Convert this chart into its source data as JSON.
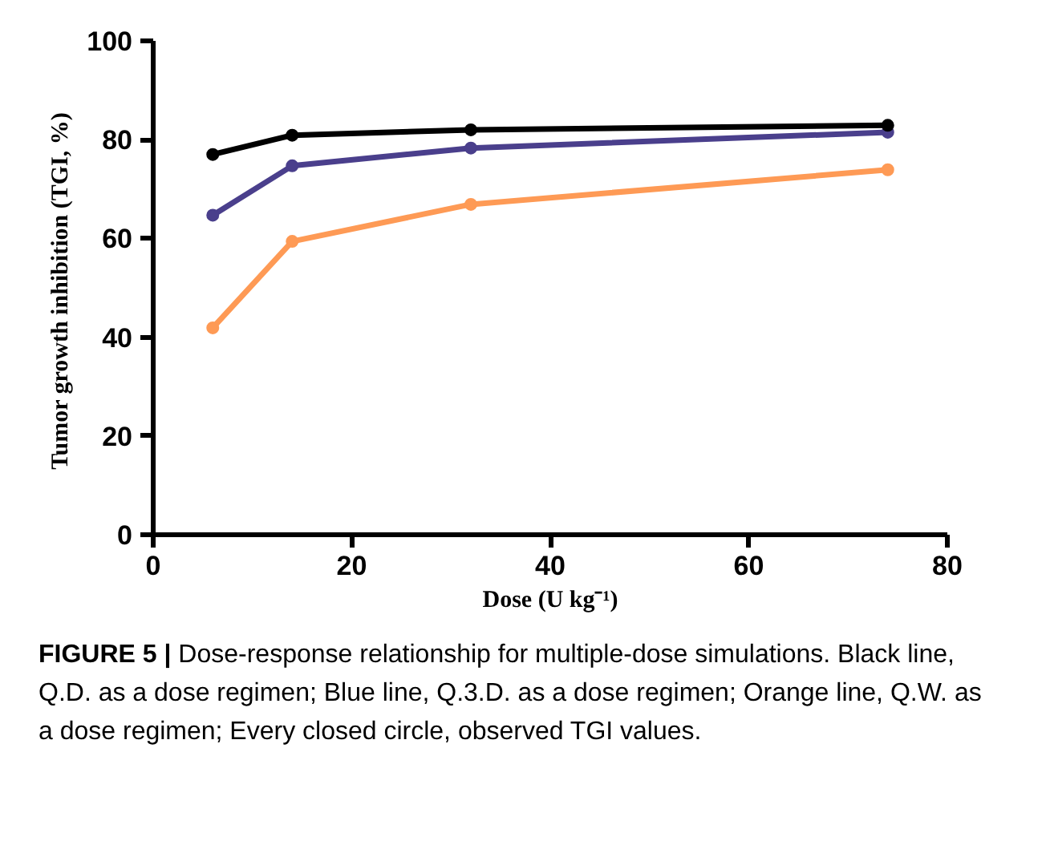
{
  "chart_data": {
    "type": "line",
    "xlabel": "Dose (U kg⁻¹)",
    "ylabel": "Tumor growth inhibition  (TGI, %)",
    "x": [
      6,
      14,
      32,
      74
    ],
    "series": [
      {
        "color": "#000000",
        "values": [
          77,
          80.9,
          82,
          82.9
        ]
      },
      {
        "color": "#4a3f8c",
        "values": [
          64.7,
          74.7,
          78.3,
          81.5
        ]
      },
      {
        "color": "#fe9a55",
        "values": [
          41.9,
          59.4,
          66.9,
          73.9
        ]
      }
    ],
    "xlim": [
      0,
      80
    ],
    "xticks": [
      0,
      20,
      40,
      60,
      80
    ],
    "ylim": [
      0,
      100
    ],
    "yticks": [
      0,
      20,
      40,
      60,
      80,
      100
    ],
    "marker": "circle",
    "line_style": "solid",
    "grid": false,
    "annotations": [
      "FIGURE 5 | Dose-response relationship for multiple-dose simulations. Black line, Q.D. as a dose regimen; Blue line, Q.3.D. as a dose regimen; Orange line, Q.W. as a dose regimen; Every closed circle, observed TGI values."
    ]
  }
}
